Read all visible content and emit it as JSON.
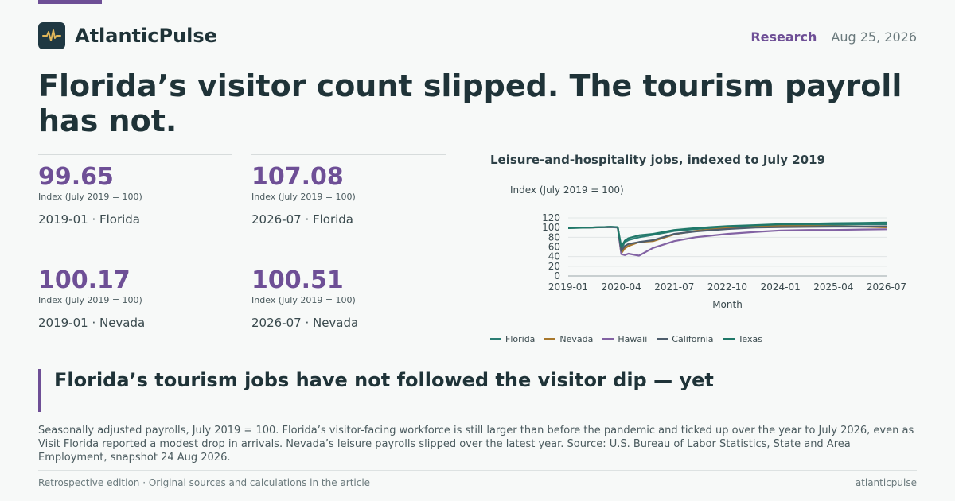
{
  "brand": {
    "name": "AtlanticPulse",
    "logo_icon": "pulse-icon"
  },
  "header": {
    "section": "Research",
    "date": "Aug 25, 2026"
  },
  "headline": "Florida’s visitor count slipped. The tourism payroll has not.",
  "stats": [
    {
      "value": "99.65",
      "unit": "Index (July 2019 = 100)",
      "label": "2019-01 · Florida"
    },
    {
      "value": "107.08",
      "unit": "Index (July 2019 = 100)",
      "label": "2026-07 · Florida"
    },
    {
      "value": "100.17",
      "unit": "Index (July 2019 = 100)",
      "label": "2019-01 · Nevada"
    },
    {
      "value": "100.51",
      "unit": "Index (July 2019 = 100)",
      "label": "2026-07 · Nevada"
    }
  ],
  "callout": "Florida’s tourism jobs have not followed the visitor dip — yet",
  "body": "Seasonally adjusted payrolls, July 2019 = 100. Florida’s visitor-facing workforce is still larger than before the pandemic and ticked up over the year to July 2026, even as Visit Florida reported a modest drop in arrivals. Nevada’s leisure payrolls slipped over the latest year. Source: U.S. Bureau of Labor Statistics, State and Area Employment, snapshot 24 Aug 2026.",
  "footer": {
    "left": "Retrospective edition · Original sources and calculations in the article",
    "right": "atlanticpulse"
  },
  "colors": {
    "accent": "#6e4f96",
    "text": "#1f3338"
  },
  "chart_data": {
    "type": "line",
    "title": "Leisure-and-hospitality jobs, indexed to July 2019",
    "ylabel": "Index (July 2019 = 100)",
    "xlabel": "Month",
    "ylim": [
      0,
      120
    ],
    "yticks": [
      "0",
      "20",
      "40",
      "60",
      "80",
      "100",
      "120"
    ],
    "xticks": [
      "2019-01",
      "2020-04",
      "2021-07",
      "2022-10",
      "2024-01",
      "2025-04",
      "2026-07"
    ],
    "legend_position": "bottom",
    "grid": true,
    "x": [
      "2019-01",
      "2019-07",
      "2020-01",
      "2020-03",
      "2020-04",
      "2020-05",
      "2020-06",
      "2020-09",
      "2021-01",
      "2021-07",
      "2022-01",
      "2022-10",
      "2023-06",
      "2024-01",
      "2024-09",
      "2025-04",
      "2025-12",
      "2026-07"
    ],
    "series": [
      {
        "name": "Florida",
        "color": "#2a7d73",
        "values": [
          99.65,
          100.0,
          101.5,
          100.6,
          56,
          70,
          74,
          80,
          85,
          93,
          97,
          101,
          103,
          104,
          105,
          106,
          106.5,
          107.08
        ]
      },
      {
        "name": "Nevada",
        "color": "#a8782c",
        "values": [
          100.17,
          100.0,
          101.0,
          100.2,
          47,
          57,
          62,
          70,
          72,
          86,
          93,
          99,
          101,
          103,
          103,
          102.5,
          102,
          100.51
        ]
      },
      {
        "name": "Hawaii",
        "color": "#8262a3",
        "values": [
          99.5,
          100.0,
          101.0,
          100.0,
          45,
          43,
          46,
          42,
          58,
          72,
          80,
          87,
          91,
          94,
          95,
          95,
          96,
          96.5
        ]
      },
      {
        "name": "California",
        "color": "#4e5d6c",
        "values": [
          99.2,
          100.0,
          101.5,
          100.8,
          52,
          62,
          66,
          70,
          74,
          87,
          92,
          97,
          100,
          101,
          101.5,
          102,
          102,
          102.5
        ]
      },
      {
        "name": "Texas",
        "color": "#1f7868",
        "values": [
          98.8,
          100.0,
          101.5,
          101.0,
          60,
          73,
          78,
          84,
          87,
          95,
          99,
          103,
          105,
          107,
          108,
          109,
          109.5,
          110.5
        ]
      }
    ]
  }
}
